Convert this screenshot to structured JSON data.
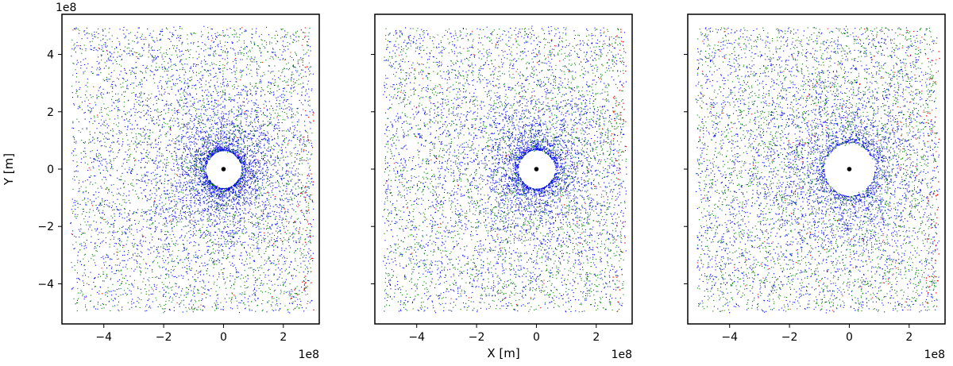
{
  "chart_data": [
    {
      "type": "scatter",
      "title": "",
      "xlabel": "",
      "ylabel": "Y [m]",
      "x_offset_label": "1e8",
      "y_offset_label": "1e8",
      "xlim": [
        -5.4,
        3.2
      ],
      "ylim": [
        -5.4,
        5.4
      ],
      "xticks": [
        -4,
        -2,
        0,
        2
      ],
      "xtick_labels": [
        "−4",
        "−2",
        "0",
        "2"
      ],
      "yticks": [
        -4,
        -2,
        0,
        2,
        4
      ],
      "ytick_labels": [
        "−4",
        "−2",
        "0",
        "2",
        "4"
      ],
      "grid": false,
      "legend": "none",
      "colors": {
        "blue": "#0000ff",
        "green": "#008000",
        "red": "#ff0000",
        "center": "#000000"
      },
      "central_body": {
        "x": 0,
        "y": 0
      },
      "hole_radius": 0.6,
      "point_cloud": {
        "blue_weight": 0.62,
        "concentration": 0.9
      }
    },
    {
      "type": "scatter",
      "title": "",
      "xlabel": "X [m]",
      "ylabel": "",
      "x_offset_label": "1e8",
      "y_offset_label": "",
      "xlim": [
        -5.4,
        3.2
      ],
      "ylim": [
        -5.4,
        5.4
      ],
      "xticks": [
        -4,
        -2,
        0,
        2
      ],
      "xtick_labels": [
        "−4",
        "−2",
        "0",
        "2"
      ],
      "yticks": [
        -4,
        -2,
        0,
        2,
        4
      ],
      "ytick_labels": [],
      "grid": false,
      "legend": "none",
      "colors": {
        "blue": "#0000ff",
        "green": "#008000",
        "red": "#ff0000",
        "center": "#000000"
      },
      "central_body": {
        "x": 0,
        "y": 0
      },
      "hole_radius": 0.62,
      "point_cloud": {
        "blue_weight": 0.55,
        "concentration": 0.8
      }
    },
    {
      "type": "scatter",
      "title": "",
      "xlabel": "",
      "ylabel": "",
      "x_offset_label": "1e8",
      "y_offset_label": "",
      "xlim": [
        -5.4,
        3.2
      ],
      "ylim": [
        -5.4,
        5.4
      ],
      "xticks": [
        -4,
        -2,
        0,
        2
      ],
      "xtick_labels": [
        "−4",
        "−2",
        "0",
        "2"
      ],
      "yticks": [
        -4,
        -2,
        0,
        2,
        4
      ],
      "ytick_labels": [],
      "grid": false,
      "legend": "none",
      "colors": {
        "blue": "#0000ff",
        "green": "#008000",
        "red": "#ff0000",
        "center": "#000000"
      },
      "central_body": {
        "x": 0,
        "y": 0
      },
      "hole_radius": 0.85,
      "point_cloud": {
        "blue_weight": 0.5,
        "concentration": 0.6
      }
    }
  ]
}
